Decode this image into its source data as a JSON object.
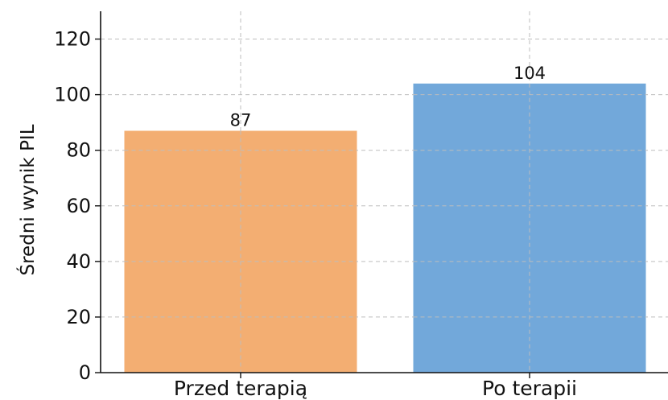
{
  "chart_data": {
    "type": "bar",
    "categories": [
      "Przed terapią",
      "Po terapii"
    ],
    "values": [
      87,
      104
    ],
    "value_labels": [
      "87",
      "104"
    ],
    "colors": [
      "#F3AE72",
      "#72A8DA"
    ],
    "title": "",
    "xlabel": "",
    "ylabel": "Średni wynik PIL",
    "ylim": [
      0,
      130
    ],
    "yticks": [
      0,
      20,
      40,
      60,
      80,
      100,
      120
    ],
    "grid": true
  }
}
